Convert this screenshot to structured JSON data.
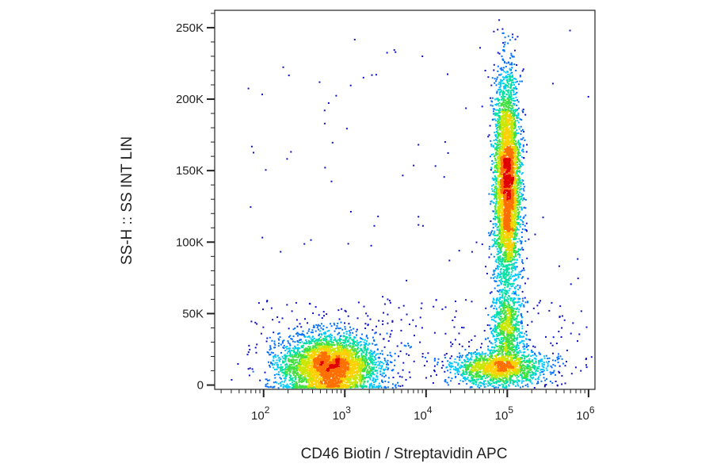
{
  "chart_data": {
    "type": "scatter",
    "subtype": "flow-cytometry-density-plot",
    "title": "",
    "xlabel": "CD46 Biotin / Streptavidin APC",
    "ylabel": "SS-H :: SS INT LIN",
    "xscale": "log",
    "xlim": [
      25,
      1200000
    ],
    "ylim": [
      -3000,
      262144
    ],
    "x_ticks": [
      {
        "value": 100,
        "base": "10",
        "exp": "2"
      },
      {
        "value": 1000,
        "base": "10",
        "exp": "3"
      },
      {
        "value": 10000,
        "base": "10",
        "exp": "4"
      },
      {
        "value": 100000,
        "base": "10",
        "exp": "5"
      },
      {
        "value": 1000000,
        "base": "10",
        "exp": "6"
      }
    ],
    "y_ticks": [
      {
        "value": 0,
        "label": "0"
      },
      {
        "value": 50000,
        "label": "50K"
      },
      {
        "value": 100000,
        "label": "100K"
      },
      {
        "value": 150000,
        "label": "150K"
      },
      {
        "value": 200000,
        "label": "200K"
      },
      {
        "value": 250000,
        "label": "250K"
      }
    ],
    "grid": false,
    "legend": "none",
    "colormap": [
      "#1010c8",
      "#0070ff",
      "#00c8ff",
      "#00e0a0",
      "#40e040",
      "#c8e600",
      "#ffd000",
      "#ff7000",
      "#e00000"
    ],
    "populations": [
      {
        "name": "negative",
        "x_center": 650,
        "y_center": 13000,
        "x_spread_decades": 0.3,
        "y_spread": 11000,
        "count": 3800
      },
      {
        "name": "positive-low-scatter",
        "x_center": 80000,
        "y_center": 12000,
        "x_spread_decades": 0.3,
        "y_spread": 6000,
        "count": 1500
      },
      {
        "name": "positive-high-scatter",
        "x_center": 100000,
        "y_center": 140000,
        "x_spread_decades": 0.08,
        "y_spread": 38000,
        "count": 4000
      },
      {
        "name": "positive-mid-scatter",
        "x_center": 100000,
        "y_center": 38000,
        "x_spread_decades": 0.1,
        "y_spread": 15000,
        "count": 800
      }
    ]
  }
}
